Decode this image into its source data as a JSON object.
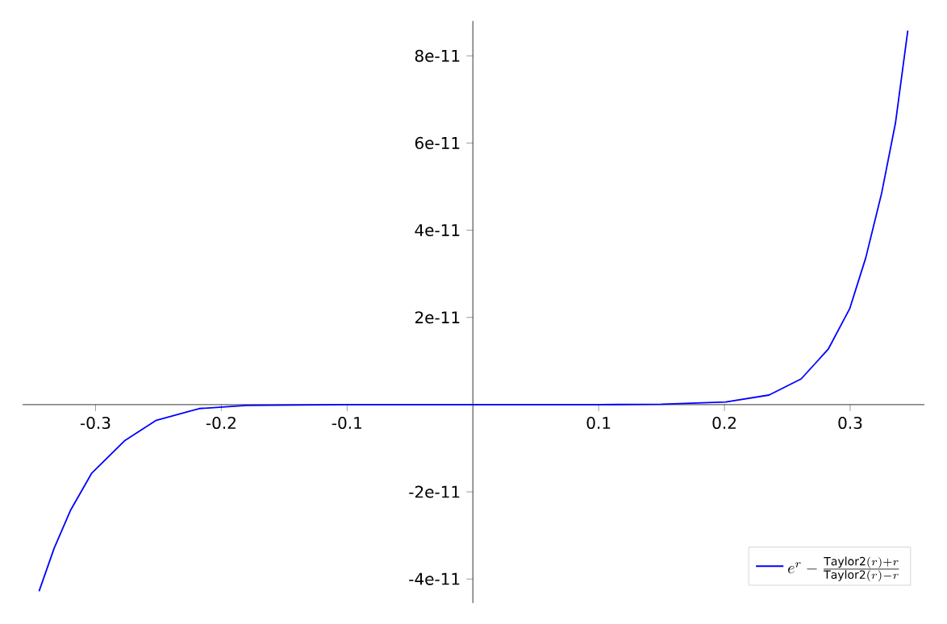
{
  "chart_data": {
    "type": "line",
    "xlim": [
      -0.358,
      0.359
    ],
    "ylim": [
      -4.55e-11,
      8.8e-11
    ],
    "xticks": [
      -0.3,
      -0.2,
      -0.1,
      0.1,
      0.2,
      0.3
    ],
    "yticks": [
      {
        "value": -4e-11,
        "label": "-4e-11"
      },
      {
        "value": -2e-11,
        "label": "-2e-11"
      },
      {
        "value": 2e-11,
        "label": "2e-11"
      },
      {
        "value": 4e-11,
        "label": "4e-11"
      },
      {
        "value": 6e-11,
        "label": "6e-11"
      },
      {
        "value": 8e-11,
        "label": "8e-11"
      }
    ],
    "legend": "bottom right",
    "series": [
      {
        "name": "e^{r} - \\frac{\\mathrm{Taylor2}(r) + r}{\\mathrm{Taylor2}(r) - r}",
        "color": "#0000ff",
        "line_style": "solid",
        "x": [
          -0.3449,
          -0.333,
          -0.32,
          -0.303,
          -0.277,
          -0.2517,
          -0.2175,
          -0.18,
          -0.1,
          0,
          0.1,
          0.15,
          0.201,
          0.2355,
          0.261,
          0.2825,
          0.2996,
          0.3124,
          0.325,
          0.336,
          0.3458
        ],
        "values": [
          -4.28e-11,
          -3.3e-11,
          -2.43e-11,
          -1.57e-11,
          -8.3e-12,
          -3.6e-12,
          -9e-13,
          -2e-13,
          0,
          0,
          0,
          1e-13,
          6e-13,
          2.2e-12,
          5.9e-12,
          1.27e-11,
          2.2e-11,
          3.37e-11,
          4.85e-11,
          6.46e-11,
          8.58e-11
        ]
      }
    ]
  }
}
